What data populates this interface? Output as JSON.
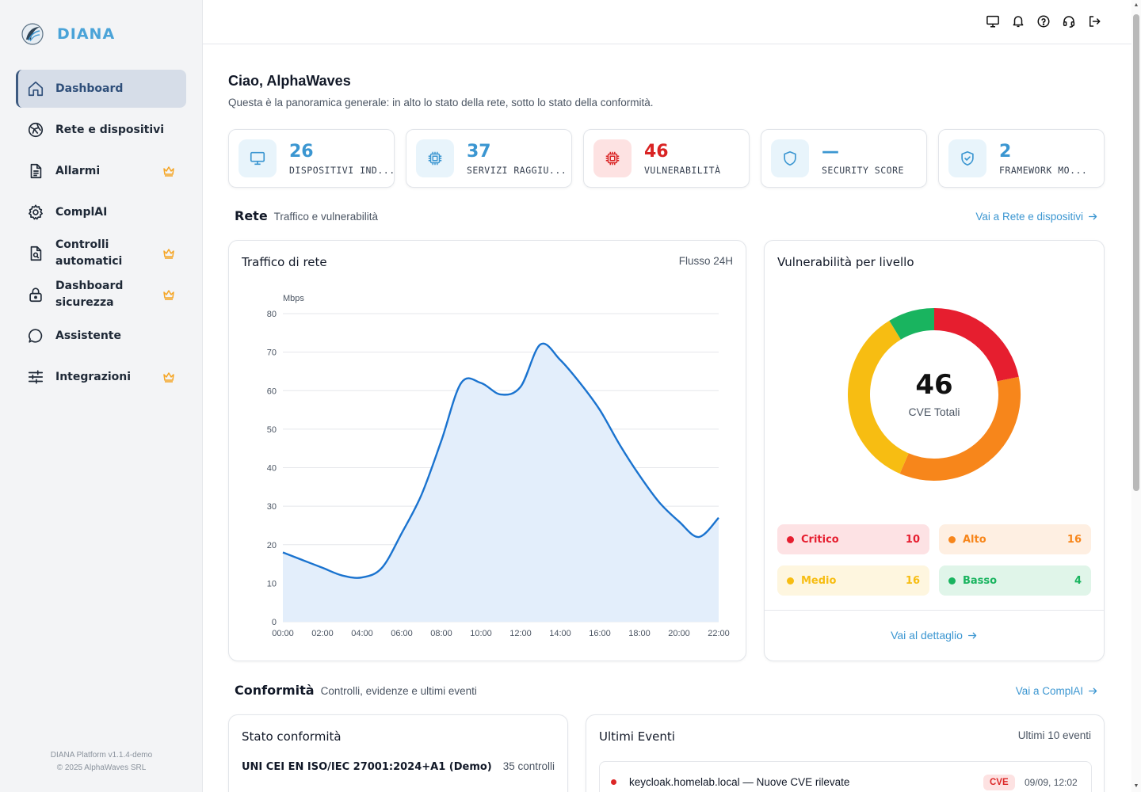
{
  "brand": {
    "name": "DIANA"
  },
  "sidebar": {
    "items": [
      {
        "label": "Dashboard",
        "icon": "home-icon",
        "premium": false,
        "active": true
      },
      {
        "label": "Rete e dispositivi",
        "icon": "network-icon",
        "premium": false
      },
      {
        "label": "Allarmi",
        "icon": "document-icon",
        "premium": true
      },
      {
        "label": "ComplAI",
        "icon": "gear-icon",
        "premium": false
      },
      {
        "label": "Controlli automatici",
        "icon": "file-search-icon",
        "premium": true
      },
      {
        "label": "Dashboard sicurezza",
        "icon": "lock-icon",
        "premium": true
      },
      {
        "label": "Assistente",
        "icon": "chat-bubble-icon",
        "premium": false
      },
      {
        "label": "Integrazioni",
        "icon": "sliders-icon",
        "premium": true
      }
    ],
    "footer_version": "DIANA Platform v1.1.4-demo",
    "footer_copyright": "© 2025 AlphaWaves SRL"
  },
  "topbar": {
    "icons": [
      "monitor-icon",
      "bell-icon",
      "help-icon",
      "headset-icon",
      "logout-icon"
    ]
  },
  "header": {
    "greeting": "Ciao, AlphaWaves",
    "subtitle": "Questa è la panoramica generale: in alto lo stato della rete, sotto lo stato della conformità."
  },
  "kpis": [
    {
      "value": "26",
      "label": "DISPOSITIVI IND...",
      "icon": "monitor-icon"
    },
    {
      "value": "37",
      "label": "SERVIZI RAGGIU...",
      "icon": "chip-icon"
    },
    {
      "value": "46",
      "label": "VULNERABILITÀ",
      "icon": "chip-icon",
      "alert": true
    },
    {
      "value": "—",
      "label": "SECURITY SCORE",
      "icon": "shield-icon"
    },
    {
      "value": "2",
      "label": "FRAMEWORK MO...",
      "icon": "shield-check-icon"
    }
  ],
  "network": {
    "title": "Rete",
    "subtitle": "Traffico e vulnerabilità",
    "link": "Vai a Rete e dispositivi"
  },
  "traffic_card": {
    "title": "Traffico di rete",
    "range": "Flusso 24H"
  },
  "vuln_card": {
    "title": "Vulnerabilità per livello",
    "total": "46",
    "caption": "CVE Totali",
    "link": "Vai al dettaglio"
  },
  "severity": [
    {
      "name": "Critico",
      "value": 10,
      "color": "#e61e2f",
      "bg": "#fde2e4"
    },
    {
      "name": "Alto",
      "value": 16,
      "color": "#f7861b",
      "bg": "#feefe2"
    },
    {
      "name": "Medio",
      "value": 16,
      "color": "#f7bd12",
      "bg": "#fef6df"
    },
    {
      "name": "Basso",
      "value": 4,
      "color": "#19b45f",
      "bg": "#e0f5e9"
    }
  ],
  "compliance": {
    "title": "Conformità",
    "subtitle": "Controlli, evidenze e ultimi eventi",
    "link": "Vai a ComplAI"
  },
  "compliance_card": {
    "title": "Stato conformità",
    "framework": "UNI CEI EN ISO/IEC 27001:2024+A1 (Demo)",
    "controls": "35 controlli"
  },
  "events_card": {
    "title": "Ultimi Eventi",
    "subtitle": "Ultimi 10 eventi",
    "events": [
      {
        "text": "keycloak.homelab.local — Nuove CVE rilevate",
        "tag": "CVE",
        "time": "09/09, 12:02"
      }
    ]
  },
  "chart_data": [
    {
      "type": "area",
      "title": "Traffico di rete",
      "ylabel": "Mbps",
      "ylim": [
        0,
        80
      ],
      "yticks": [
        0,
        10,
        20,
        30,
        40,
        50,
        60,
        70,
        80
      ],
      "x": [
        "00:00",
        "01:00",
        "02:00",
        "03:00",
        "04:00",
        "05:00",
        "06:00",
        "07:00",
        "08:00",
        "09:00",
        "10:00",
        "11:00",
        "12:00",
        "13:00",
        "14:00",
        "15:00",
        "16:00",
        "17:00",
        "18:00",
        "19:00",
        "20:00",
        "21:00",
        "22:00"
      ],
      "xticks": [
        "00:00",
        "02:00",
        "04:00",
        "06:00",
        "08:00",
        "10:00",
        "12:00",
        "14:00",
        "16:00",
        "18:00",
        "20:00",
        "22:00"
      ],
      "values": [
        18,
        16,
        14,
        12,
        11.5,
        14,
        23,
        33,
        47,
        62,
        62,
        59,
        61,
        72,
        68,
        62,
        55,
        46,
        38,
        31,
        26,
        22,
        27
      ],
      "grid": true,
      "color": "#1a73cf"
    },
    {
      "type": "pie",
      "title": "Vulnerabilità per livello",
      "categories": [
        "Critico",
        "Alto",
        "Medio",
        "Basso"
      ],
      "values": [
        10,
        16,
        16,
        4
      ],
      "colors": [
        "#e61e2f",
        "#f7861b",
        "#f7bd12",
        "#19b45f"
      ]
    }
  ]
}
